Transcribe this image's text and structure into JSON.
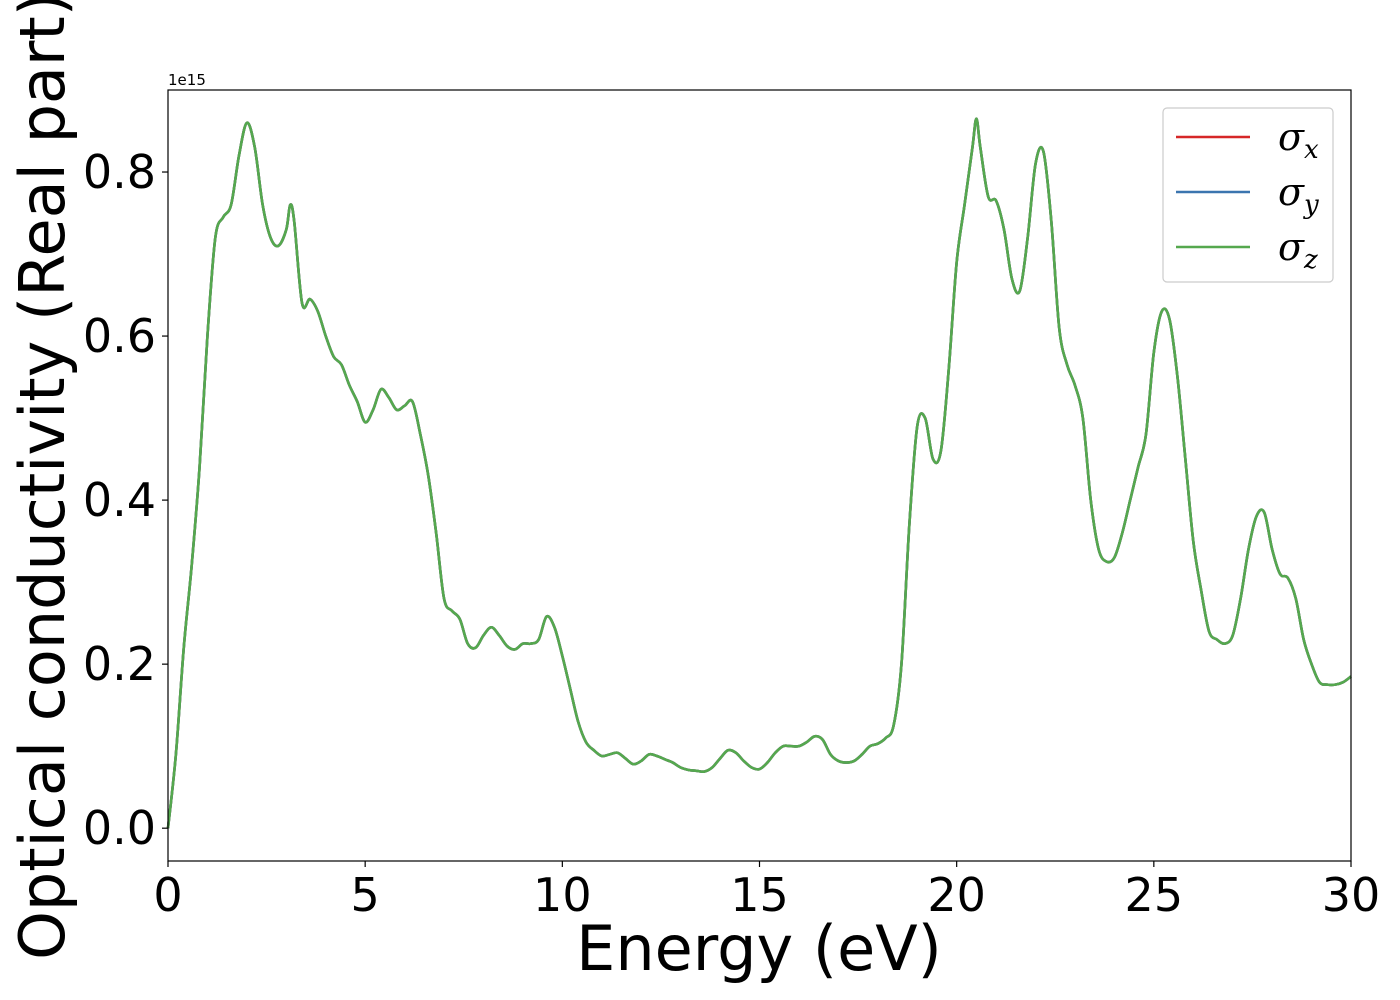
{
  "chart_data": {
    "type": "line",
    "title": "",
    "xlabel": "Energy (eV)",
    "ylabel": "Optical conductivity (Real part)",
    "y_offset_label": "1e15",
    "y_scale": 1000000000000000.0,
    "xlim": [
      0,
      30
    ],
    "ylim": [
      -0.04,
      0.9
    ],
    "xticks": [
      0,
      5,
      10,
      15,
      20,
      25,
      30
    ],
    "xtick_labels": [
      "0",
      "5",
      "10",
      "15",
      "20",
      "25",
      "30"
    ],
    "yticks": [
      0.0,
      0.2,
      0.4,
      0.6,
      0.8
    ],
    "ytick_labels": [
      "0.0",
      "0.2",
      "0.4",
      "0.6",
      "0.8"
    ],
    "grid": false,
    "legend_position": "top-right",
    "colors": {
      "sigma_x": "#d62728",
      "sigma_y": "#3b75af",
      "sigma_z": "#55a84e"
    },
    "x": [
      0,
      0.2,
      0.4,
      0.6,
      0.8,
      1.0,
      1.2,
      1.4,
      1.6,
      1.8,
      2.0,
      2.2,
      2.4,
      2.6,
      2.8,
      3.0,
      3.1,
      3.2,
      3.4,
      3.6,
      3.8,
      4.0,
      4.2,
      4.4,
      4.6,
      4.8,
      5.0,
      5.2,
      5.4,
      5.6,
      5.8,
      6.0,
      6.2,
      6.4,
      6.6,
      6.8,
      7.0,
      7.2,
      7.4,
      7.6,
      7.8,
      8.0,
      8.2,
      8.4,
      8.6,
      8.8,
      9.0,
      9.2,
      9.4,
      9.6,
      9.8,
      10.0,
      10.2,
      10.4,
      10.6,
      10.8,
      11.0,
      11.2,
      11.4,
      11.6,
      11.8,
      12.0,
      12.2,
      12.4,
      12.6,
      12.8,
      13.0,
      13.2,
      13.4,
      13.6,
      13.8,
      14.0,
      14.2,
      14.4,
      14.6,
      14.8,
      15.0,
      15.2,
      15.4,
      15.6,
      15.8,
      16.0,
      16.2,
      16.4,
      16.6,
      16.8,
      17.0,
      17.2,
      17.4,
      17.6,
      17.8,
      18.0,
      18.2,
      18.4,
      18.6,
      18.8,
      19.0,
      19.2,
      19.4,
      19.6,
      19.8,
      20.0,
      20.2,
      20.4,
      20.5,
      20.6,
      20.8,
      21.0,
      21.2,
      21.4,
      21.6,
      21.8,
      22.0,
      22.2,
      22.4,
      22.6,
      22.8,
      23.0,
      23.2,
      23.4,
      23.6,
      23.8,
      24.0,
      24.2,
      24.4,
      24.6,
      24.8,
      25.0,
      25.2,
      25.4,
      25.6,
      25.8,
      26.0,
      26.2,
      26.4,
      26.6,
      26.8,
      27.0,
      27.2,
      27.4,
      27.6,
      27.8,
      28.0,
      28.2,
      28.4,
      28.6,
      28.8,
      29.0,
      29.2,
      29.4,
      29.6,
      29.8,
      30.0
    ],
    "series": [
      {
        "name": "σx",
        "base": "σ",
        "sub": "x",
        "color": "#d62728",
        "values": [
          0.0,
          0.09,
          0.22,
          0.32,
          0.44,
          0.6,
          0.72,
          0.745,
          0.76,
          0.82,
          0.86,
          0.83,
          0.76,
          0.72,
          0.71,
          0.73,
          0.76,
          0.74,
          0.64,
          0.645,
          0.63,
          0.6,
          0.575,
          0.565,
          0.54,
          0.52,
          0.495,
          0.51,
          0.535,
          0.525,
          0.51,
          0.515,
          0.52,
          0.48,
          0.43,
          0.36,
          0.28,
          0.265,
          0.255,
          0.225,
          0.22,
          0.235,
          0.245,
          0.235,
          0.222,
          0.218,
          0.225,
          0.225,
          0.23,
          0.258,
          0.245,
          0.21,
          0.17,
          0.13,
          0.105,
          0.095,
          0.088,
          0.09,
          0.092,
          0.085,
          0.078,
          0.082,
          0.09,
          0.088,
          0.084,
          0.08,
          0.074,
          0.071,
          0.07,
          0.069,
          0.074,
          0.085,
          0.095,
          0.092,
          0.082,
          0.074,
          0.072,
          0.08,
          0.092,
          0.1,
          0.1,
          0.1,
          0.105,
          0.112,
          0.108,
          0.09,
          0.082,
          0.08,
          0.082,
          0.09,
          0.1,
          0.103,
          0.11,
          0.125,
          0.2,
          0.37,
          0.49,
          0.5,
          0.45,
          0.46,
          0.56,
          0.69,
          0.76,
          0.83,
          0.865,
          0.83,
          0.77,
          0.765,
          0.73,
          0.67,
          0.655,
          0.72,
          0.81,
          0.825,
          0.74,
          0.61,
          0.565,
          0.54,
          0.5,
          0.4,
          0.34,
          0.325,
          0.33,
          0.36,
          0.4,
          0.44,
          0.48,
          0.58,
          0.63,
          0.62,
          0.55,
          0.45,
          0.35,
          0.29,
          0.24,
          0.23,
          0.225,
          0.235,
          0.28,
          0.34,
          0.38,
          0.385,
          0.34,
          0.31,
          0.305,
          0.28,
          0.23,
          0.2,
          0.178,
          0.175,
          0.175,
          0.178,
          0.185
        ]
      },
      {
        "name": "σy",
        "base": "σ",
        "sub": "y",
        "color": "#3b75af",
        "values": [
          0.0,
          0.09,
          0.22,
          0.32,
          0.44,
          0.6,
          0.72,
          0.745,
          0.76,
          0.82,
          0.86,
          0.83,
          0.76,
          0.72,
          0.71,
          0.73,
          0.76,
          0.74,
          0.64,
          0.645,
          0.63,
          0.6,
          0.575,
          0.565,
          0.54,
          0.52,
          0.495,
          0.51,
          0.535,
          0.525,
          0.51,
          0.515,
          0.52,
          0.48,
          0.43,
          0.36,
          0.28,
          0.265,
          0.255,
          0.225,
          0.22,
          0.235,
          0.245,
          0.235,
          0.222,
          0.218,
          0.225,
          0.225,
          0.23,
          0.258,
          0.245,
          0.21,
          0.17,
          0.13,
          0.105,
          0.095,
          0.088,
          0.09,
          0.092,
          0.085,
          0.078,
          0.082,
          0.09,
          0.088,
          0.084,
          0.08,
          0.074,
          0.071,
          0.07,
          0.069,
          0.074,
          0.085,
          0.095,
          0.092,
          0.082,
          0.074,
          0.072,
          0.08,
          0.092,
          0.1,
          0.1,
          0.1,
          0.105,
          0.112,
          0.108,
          0.09,
          0.082,
          0.08,
          0.082,
          0.09,
          0.1,
          0.103,
          0.11,
          0.125,
          0.2,
          0.37,
          0.49,
          0.5,
          0.45,
          0.46,
          0.56,
          0.69,
          0.76,
          0.83,
          0.865,
          0.83,
          0.77,
          0.765,
          0.73,
          0.67,
          0.655,
          0.72,
          0.81,
          0.825,
          0.74,
          0.61,
          0.565,
          0.54,
          0.5,
          0.4,
          0.34,
          0.325,
          0.33,
          0.36,
          0.4,
          0.44,
          0.48,
          0.58,
          0.63,
          0.62,
          0.55,
          0.45,
          0.35,
          0.29,
          0.24,
          0.23,
          0.225,
          0.235,
          0.28,
          0.34,
          0.38,
          0.385,
          0.34,
          0.31,
          0.305,
          0.28,
          0.23,
          0.2,
          0.178,
          0.175,
          0.175,
          0.178,
          0.185
        ]
      },
      {
        "name": "σz",
        "base": "σ",
        "sub": "z",
        "color": "#55a84e",
        "values": [
          0.0,
          0.09,
          0.22,
          0.32,
          0.44,
          0.6,
          0.72,
          0.745,
          0.76,
          0.82,
          0.86,
          0.83,
          0.76,
          0.72,
          0.71,
          0.73,
          0.76,
          0.74,
          0.64,
          0.645,
          0.63,
          0.6,
          0.575,
          0.565,
          0.54,
          0.52,
          0.495,
          0.51,
          0.535,
          0.525,
          0.51,
          0.515,
          0.52,
          0.48,
          0.43,
          0.36,
          0.28,
          0.265,
          0.255,
          0.225,
          0.22,
          0.235,
          0.245,
          0.235,
          0.222,
          0.218,
          0.225,
          0.225,
          0.23,
          0.258,
          0.245,
          0.21,
          0.17,
          0.13,
          0.105,
          0.095,
          0.088,
          0.09,
          0.092,
          0.085,
          0.078,
          0.082,
          0.09,
          0.088,
          0.084,
          0.08,
          0.074,
          0.071,
          0.07,
          0.069,
          0.074,
          0.085,
          0.095,
          0.092,
          0.082,
          0.074,
          0.072,
          0.08,
          0.092,
          0.1,
          0.1,
          0.1,
          0.105,
          0.112,
          0.108,
          0.09,
          0.082,
          0.08,
          0.082,
          0.09,
          0.1,
          0.103,
          0.11,
          0.125,
          0.2,
          0.37,
          0.49,
          0.5,
          0.45,
          0.46,
          0.56,
          0.69,
          0.76,
          0.83,
          0.865,
          0.83,
          0.77,
          0.765,
          0.73,
          0.67,
          0.655,
          0.72,
          0.81,
          0.825,
          0.74,
          0.61,
          0.565,
          0.54,
          0.5,
          0.4,
          0.34,
          0.325,
          0.33,
          0.36,
          0.4,
          0.44,
          0.48,
          0.58,
          0.63,
          0.62,
          0.55,
          0.45,
          0.35,
          0.29,
          0.24,
          0.23,
          0.225,
          0.235,
          0.28,
          0.34,
          0.38,
          0.385,
          0.34,
          0.31,
          0.305,
          0.28,
          0.23,
          0.2,
          0.178,
          0.175,
          0.175,
          0.178,
          0.185
        ]
      }
    ]
  }
}
